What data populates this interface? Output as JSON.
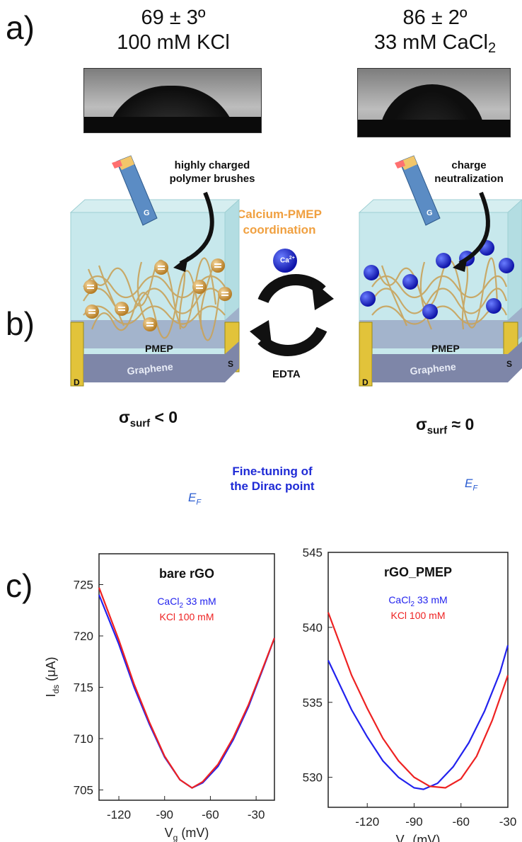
{
  "panel_a": {
    "letter": "a)",
    "left": {
      "angle": "69 ± 3º",
      "solution": "100 mM KCl"
    },
    "right": {
      "angle": "86 ± 2º",
      "solution_prefix": "33 mM CaCl",
      "solution_sub": "2"
    }
  },
  "panel_b": {
    "letter": "b)",
    "left_annotation_1": "highly charged",
    "left_annotation_2": "polymer brushes",
    "right_annotation_1": "charge",
    "right_annotation_2": "neutralization",
    "center_1": "Calcium-PMEP",
    "center_2": "coordination",
    "ion_label": "Ca",
    "ion_charge": "2+",
    "reverse_label": "EDTA",
    "device_gate": "G",
    "device_polymer": "PMEP",
    "device_channel": "Graphene",
    "device_drain": "D",
    "device_source": "S",
    "sigma_left": "σ",
    "sigma_left_sub": "surf",
    "sigma_left_rel": " < 0",
    "sigma_right": "σ",
    "sigma_right_sub": "surf",
    "sigma_right_rel": " ≈ 0",
    "finetune_1": "Fine-tuning of",
    "finetune_2": "the Dirac point",
    "ef_main": "E",
    "ef_sub": "F"
  },
  "panel_c": {
    "letter": "c)"
  },
  "colors": {
    "accent_orange": "#f0a040",
    "accent_blue": "#1f2bd6",
    "series_blue": "#2222ee",
    "series_red": "#ee2222",
    "gold": "#d9a43a",
    "gate": "#5b8cc4"
  },
  "chart_data": [
    {
      "type": "line",
      "title": "bare rGO",
      "xlabel": "V",
      "xlabel_sub": "g",
      "xlabel_unit": " (mV)",
      "ylabel": "I",
      "ylabel_sub": "ds",
      "ylabel_unit": " (μA)",
      "xlim": [
        -133,
        -18
      ],
      "ylim": [
        704,
        728
      ],
      "xticks": [
        -120,
        -90,
        -60,
        -30
      ],
      "yticks": [
        705,
        710,
        715,
        720,
        725
      ],
      "series": [
        {
          "name_prefix": "CaCl",
          "name_sub": "2",
          "name_suffix": " 33 mM",
          "color": "#2222ee",
          "x": [
            -133,
            -120,
            -110,
            -100,
            -90,
            -80,
            -72,
            -65,
            -55,
            -45,
            -35,
            -25,
            -18
          ],
          "y": [
            724.0,
            719.2,
            715.0,
            711.4,
            708.2,
            706.0,
            705.2,
            705.7,
            707.3,
            709.9,
            713.1,
            717.0,
            719.8
          ]
        },
        {
          "name_prefix": "KCl",
          "name_sub": "",
          "name_suffix": " 100 mM",
          "color": "#ee2222",
          "x": [
            -133,
            -120,
            -110,
            -100,
            -90,
            -80,
            -72,
            -65,
            -55,
            -45,
            -35,
            -25,
            -18
          ],
          "y": [
            724.7,
            719.6,
            715.3,
            711.6,
            708.3,
            706.0,
            705.2,
            705.8,
            707.5,
            710.1,
            713.3,
            717.1,
            719.8
          ]
        }
      ]
    },
    {
      "type": "line",
      "title": "rGO_PMEP",
      "xlabel": "V",
      "xlabel_sub": "g",
      "xlabel_unit": " (mV)",
      "ylabel": "",
      "xlim": [
        -145,
        -30
      ],
      "ylim": [
        528,
        545
      ],
      "xticks": [
        -120,
        -90,
        -60,
        -30
      ],
      "yticks": [
        530,
        535,
        540,
        545
      ],
      "series": [
        {
          "name_prefix": "CaCl",
          "name_sub": "2",
          "name_suffix": " 33 mM",
          "color": "#2222ee",
          "x": [
            -145,
            -130,
            -120,
            -110,
            -100,
            -90,
            -84,
            -75,
            -65,
            -55,
            -45,
            -35,
            -30
          ],
          "y": [
            537.8,
            534.5,
            532.7,
            531.1,
            530.0,
            529.3,
            529.2,
            529.6,
            530.7,
            532.3,
            534.4,
            537.0,
            538.8
          ]
        },
        {
          "name_prefix": "KCl",
          "name_sub": "",
          "name_suffix": " 100 mM",
          "color": "#ee2222",
          "x": [
            -145,
            -130,
            -120,
            -110,
            -100,
            -90,
            -80,
            -70,
            -60,
            -50,
            -40,
            -35,
            -30
          ],
          "y": [
            541.0,
            536.8,
            534.6,
            532.6,
            531.1,
            530.0,
            529.4,
            529.3,
            529.9,
            531.4,
            533.8,
            535.3,
            536.8
          ]
        }
      ]
    }
  ]
}
